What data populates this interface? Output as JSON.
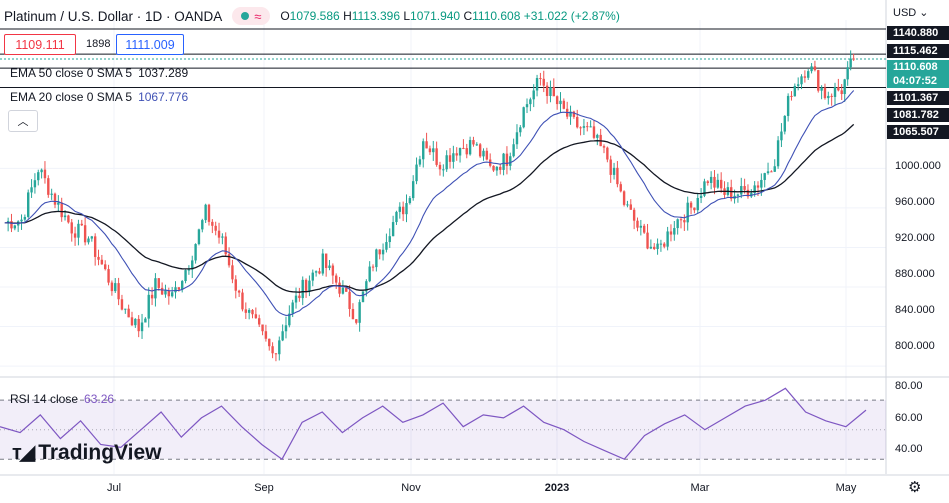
{
  "header": {
    "symbol": "Platinum / U.S. Dollar · 1D · OANDA",
    "open_label": "O",
    "open": "1079.586",
    "high_label": "H",
    "high": "1113.396",
    "low_label": "L",
    "low": "1071.940",
    "close_label": "C",
    "close": "1110.608",
    "change": "+31.022 (+2.87%)",
    "pill_icon": "wave-icon"
  },
  "quote": {
    "bid": "1109.111",
    "spread": "1898",
    "ask": "1111.009"
  },
  "indicators": {
    "ema50": {
      "label": "EMA 50 close 0 SMA 5",
      "value": "1037.289"
    },
    "ema20": {
      "label": "EMA 20 close 0 SMA 5",
      "value": "1067.776"
    }
  },
  "rsi": {
    "label": "RSI 14 close",
    "value": "63.26"
  },
  "brand": {
    "text": "TradingView",
    "icon": "tradingview-logo-icon"
  },
  "price_axis": {
    "currency": "USD",
    "ticks": [
      "1000.000",
      "960.000",
      "920.000",
      "880.000",
      "840.000",
      "800.000"
    ],
    "tags": [
      "1140.880",
      "1115.462",
      "1110.608",
      "04:07:52",
      "1101.367",
      "1081.782",
      "1065.507"
    ]
  },
  "rsi_axis": {
    "ticks": [
      "80.00",
      "60.00",
      "40.00"
    ]
  },
  "time_axis": {
    "labels": [
      "Jul",
      "Sep",
      "Nov",
      "2023",
      "Mar",
      "May"
    ]
  },
  "colors": {
    "up": "#26a69a",
    "down": "#ef5350",
    "ema50": "#131722",
    "ema20": "#3f51b5",
    "rsi": "#7e57c2"
  },
  "chart_data": [
    {
      "type": "candlestick",
      "title": "Platinum / U.S. Dollar · 1D · OANDA",
      "ylim": [
        790,
        1150
      ],
      "x_labels": [
        "Jul",
        "Sep",
        "Nov",
        "2023",
        "Mar",
        "May"
      ],
      "horizontal_levels": [
        1140.88,
        1115.462,
        1101.367,
        1081.782
      ],
      "close_path": [
        [
          "2022-05-20",
          945
        ],
        [
          "2022-05-27",
          948
        ],
        [
          "2022-06-03",
          1000
        ],
        [
          "2022-06-10",
          968
        ],
        [
          "2022-06-17",
          940
        ],
        [
          "2022-06-24",
          930
        ],
        [
          "2022-07-01",
          895
        ],
        [
          "2022-07-08",
          862
        ],
        [
          "2022-07-15",
          838
        ],
        [
          "2022-07-22",
          882
        ],
        [
          "2022-07-29",
          870
        ],
        [
          "2022-08-05",
          905
        ],
        [
          "2022-08-12",
          955
        ],
        [
          "2022-08-19",
          925
        ],
        [
          "2022-08-26",
          870
        ],
        [
          "2022-09-02",
          840
        ],
        [
          "2022-09-09",
          812
        ],
        [
          "2022-09-16",
          855
        ],
        [
          "2022-09-23",
          885
        ],
        [
          "2022-09-30",
          905
        ],
        [
          "2022-10-07",
          880
        ],
        [
          "2022-10-14",
          850
        ],
        [
          "2022-10-21",
          905
        ],
        [
          "2022-10-28",
          940
        ],
        [
          "2022-11-04",
          965
        ],
        [
          "2022-11-11",
          1030
        ],
        [
          "2022-11-18",
          1005
        ],
        [
          "2022-11-25",
          1020
        ],
        [
          "2022-12-02",
          1025
        ],
        [
          "2022-12-09",
          1000
        ],
        [
          "2022-12-16",
          1010
        ],
        [
          "2022-12-23",
          1060
        ],
        [
          "2022-12-30",
          1090
        ],
        [
          "2023-01-06",
          1065
        ],
        [
          "2023-01-13",
          1045
        ],
        [
          "2023-01-20",
          1035
        ],
        [
          "2023-01-27",
          1010
        ],
        [
          "2023-02-03",
          965
        ],
        [
          "2023-02-10",
          935
        ],
        [
          "2023-02-17",
          915
        ],
        [
          "2023-02-24",
          945
        ],
        [
          "2023-03-03",
          960
        ],
        [
          "2023-03-10",
          990
        ],
        [
          "2023-03-17",
          975
        ],
        [
          "2023-03-24",
          975
        ],
        [
          "2023-03-31",
          985
        ],
        [
          "2023-04-07",
          1010
        ],
        [
          "2023-04-14",
          1080
        ],
        [
          "2023-04-21",
          1105
        ],
        [
          "2023-04-28",
          1075
        ],
        [
          "2023-05-05",
          1080
        ],
        [
          "2023-05-10",
          1110.608
        ]
      ]
    },
    {
      "type": "line",
      "title": "RSI 14 close",
      "ylim": [
        20,
        85
      ],
      "y_ticks": [
        80,
        60,
        40
      ],
      "series": [
        {
          "name": "RSI 14 close",
          "last": 63.26,
          "values": [
            52,
            48,
            60,
            44,
            56,
            40,
            38,
            50,
            62,
            45,
            58,
            66,
            52,
            40,
            30,
            55,
            62,
            48,
            58,
            66,
            55,
            60,
            68,
            52,
            60,
            58,
            66,
            55,
            50,
            42,
            36,
            30,
            46,
            54,
            60,
            50,
            58,
            66,
            70,
            78,
            62,
            56,
            52,
            63.26
          ]
        }
      ]
    }
  ]
}
